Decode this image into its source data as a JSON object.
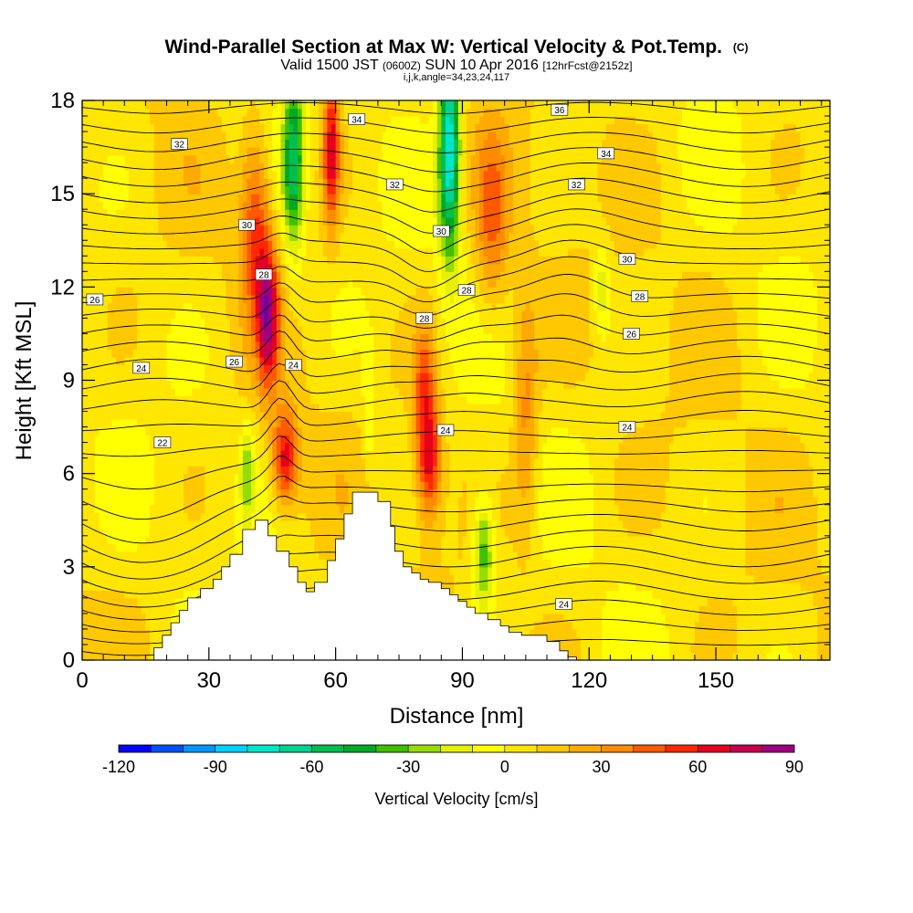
{
  "chart_data": {
    "type": "heatmap",
    "title": "Wind-Parallel Section at Max W: Vertical Velocity & Pot.Temp.",
    "title_mark": "(C)",
    "subtitle": {
      "valid": "Valid 1500 JST",
      "utc": "(0600Z)",
      "date": "SUN 10 Apr 2016",
      "forecast": "[12hrFcst@2152z]",
      "indices": "i,j,k,angle=34,23,24,117"
    },
    "xlabel": "Distance [nm]",
    "ylabel": "Height [Kft MSL]",
    "xlim": [
      0,
      177
    ],
    "ylim": [
      0,
      18
    ],
    "x_ticks": [
      0,
      30,
      60,
      90,
      120,
      150
    ],
    "y_ticks": [
      0,
      3,
      6,
      9,
      12,
      15,
      18
    ],
    "grid": false,
    "colorbar": {
      "label": "Vertical Velocity [cm/s]",
      "tick_labels": [
        "-120",
        "-90",
        "-60",
        "-30",
        "0",
        "30",
        "60",
        "90"
      ],
      "tick_values": [
        -120,
        -90,
        -60,
        -30,
        0,
        30,
        60,
        90
      ],
      "bins": [
        -120,
        -110,
        -100,
        -90,
        -80,
        -70,
        -60,
        -50,
        -40,
        -30,
        -20,
        -10,
        0,
        10,
        20,
        30,
        40,
        50,
        60,
        70,
        80,
        90
      ],
      "colors": [
        "#0000ff",
        "#0050ff",
        "#0096ff",
        "#00d2ff",
        "#00e6c8",
        "#00d290",
        "#00be50",
        "#00aa28",
        "#40c000",
        "#96dc00",
        "#e6f000",
        "#ffff00",
        "#ffe600",
        "#ffc800",
        "#ffaa00",
        "#ff8c00",
        "#ff5a00",
        "#ff2800",
        "#e6001e",
        "#c80050",
        "#a00080",
        "#6e00a0"
      ]
    },
    "terrain": {
      "x": [
        0,
        15,
        17,
        19,
        21,
        23,
        25,
        28,
        31,
        33,
        35,
        38,
        41,
        44,
        46,
        49,
        51,
        53,
        55,
        58,
        60,
        62,
        64,
        66,
        70,
        73,
        74,
        76,
        78,
        80,
        82,
        85,
        87,
        89,
        91,
        93,
        96,
        99,
        101,
        104,
        110,
        113,
        115,
        117,
        177
      ],
      "height": [
        0,
        0,
        0.4,
        0.8,
        1.2,
        1.6,
        2.0,
        2.3,
        2.6,
        3.0,
        3.4,
        4.2,
        4.5,
        4.0,
        3.5,
        3.0,
        2.5,
        2.2,
        2.5,
        3.2,
        3.9,
        4.7,
        5.4,
        5.4,
        5.1,
        4.3,
        3.5,
        3.0,
        2.8,
        2.6,
        2.5,
        2.3,
        2.1,
        1.9,
        1.7,
        1.5,
        1.3,
        1.1,
        0.9,
        0.8,
        0.6,
        0.3,
        0.1,
        0,
        0
      ]
    },
    "updrafts": [
      {
        "x": 44,
        "z": 11.0,
        "wx": 2.5,
        "wz": 2.2,
        "w": 65
      },
      {
        "x": 48,
        "z": 6.5,
        "wx": 3.0,
        "wz": 1.5,
        "w": 60
      },
      {
        "x": 41,
        "z": 14.0,
        "wx": 3.5,
        "wz": 3.0,
        "w": 45
      },
      {
        "x": 82,
        "z": 6.5,
        "wx": 3.0,
        "wz": 2.0,
        "w": 60
      },
      {
        "x": 81,
        "z": 9.0,
        "wx": 2.5,
        "wz": 2.0,
        "w": 35
      },
      {
        "x": 59,
        "z": 16.5,
        "wx": 2.0,
        "wz": 2.5,
        "w": 60
      },
      {
        "x": 105,
        "z": 8.0,
        "wx": 3.0,
        "wz": 4.0,
        "w": 30
      },
      {
        "x": 97,
        "z": 14.0,
        "wx": 4.0,
        "wz": 3.0,
        "w": 35
      }
    ],
    "downdrafts": [
      {
        "x": 50,
        "z": 16.0,
        "wx": 2.5,
        "wz": 3.0,
        "w": -60
      },
      {
        "x": 87,
        "z": 16.5,
        "wx": 2.5,
        "wz": 3.5,
        "w": -85
      },
      {
        "x": 95,
        "z": 3.5,
        "wx": 2.5,
        "wz": 1.8,
        "w": -45
      },
      {
        "x": 39,
        "z": 6.0,
        "wx": 1.5,
        "wz": 1.5,
        "w": -30
      },
      {
        "x": 123,
        "z": 12.0,
        "wx": 2.0,
        "wz": 1.5,
        "w": -25
      },
      {
        "x": 68,
        "z": 8.0,
        "wx": 1.5,
        "wz": 2.0,
        "w": -20
      }
    ],
    "theta_contours": {
      "interval": 0.5,
      "range": [
        19,
        37
      ],
      "labeled": [
        {
          "value": 22,
          "x": 19,
          "z": 7.0
        },
        {
          "value": 24,
          "x": 14,
          "z": 9.4
        },
        {
          "value": 26,
          "x": 3,
          "z": 11.6
        },
        {
          "value": 26,
          "x": 36,
          "z": 9.6
        },
        {
          "value": 28,
          "x": 43,
          "z": 12.4
        },
        {
          "value": 24,
          "x": 50,
          "z": 9.5
        },
        {
          "value": 28,
          "x": 81,
          "z": 11.0
        },
        {
          "value": 28,
          "x": 91,
          "z": 11.9
        },
        {
          "value": 30,
          "x": 39,
          "z": 14.0
        },
        {
          "value": 30,
          "x": 85,
          "z": 13.8
        },
        {
          "value": 32,
          "x": 23,
          "z": 16.6
        },
        {
          "value": 32,
          "x": 74,
          "z": 15.3
        },
        {
          "value": 32,
          "x": 117,
          "z": 15.3
        },
        {
          "value": 34,
          "x": 65,
          "z": 17.4
        },
        {
          "value": 34,
          "x": 124,
          "z": 16.3
        },
        {
          "value": 36,
          "x": 113,
          "z": 17.7
        },
        {
          "value": 30,
          "x": 129,
          "z": 12.9
        },
        {
          "value": 28,
          "x": 132,
          "z": 11.7
        },
        {
          "value": 26,
          "x": 130,
          "z": 10.5
        },
        {
          "value": 24,
          "x": 86,
          "z": 7.4
        },
        {
          "value": 24,
          "x": 129,
          "z": 7.5
        },
        {
          "value": 24,
          "x": 114,
          "z": 1.8
        }
      ]
    }
  }
}
